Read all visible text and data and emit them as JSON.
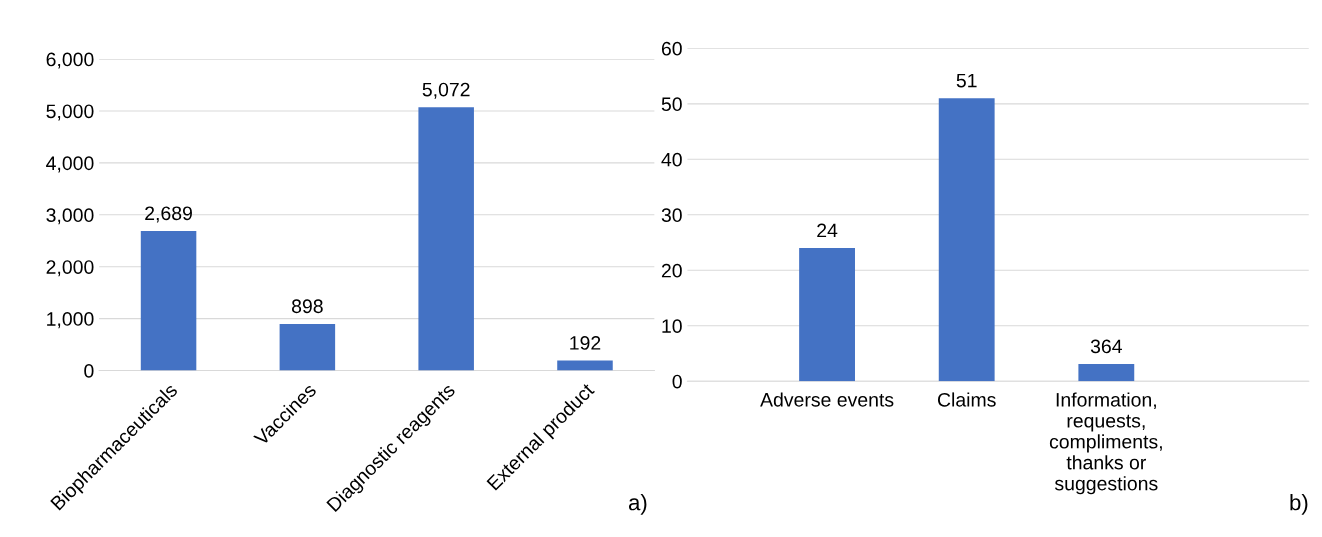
{
  "chart_data": [
    {
      "type": "bar",
      "categories": [
        "Biopharmaceuticals",
        "Vaccines",
        "Diagnostic reagents",
        "External product"
      ],
      "values": [
        2689,
        898,
        5072,
        192
      ],
      "color": "#4472c4",
      "ylim": [
        0,
        6000
      ],
      "yticks": [
        {
          "value": 0,
          "label": "0"
        },
        {
          "value": 1000,
          "label": "1,000"
        },
        {
          "value": 2000,
          "label": "2,000"
        },
        {
          "value": 3000,
          "label": "3,000"
        },
        {
          "value": 4000,
          "label": "4,000"
        },
        {
          "value": 5000,
          "label": "5,000"
        },
        {
          "value": 6000,
          "label": "6,000"
        }
      ],
      "grid": "y",
      "value_labels": [
        "2,689",
        "898",
        "5,072",
        "192"
      ],
      "annotations": [
        "a)"
      ]
    },
    {
      "type": "bar",
      "categories": [
        "Adverse events",
        "Claims",
        "Information,\nrequests,\ncompliments,\nthanks or\nsuggestions"
      ],
      "values": [
        24,
        51,
        3.1
      ],
      "color": "#4472c4",
      "ylim": [
        0,
        60
      ],
      "yticks": [
        0,
        10,
        20,
        30,
        40,
        50,
        60
      ],
      "grid": "y",
      "value_labels": [
        "24",
        "51",
        null
      ],
      "annotations": [
        "b)",
        {
          "text": "364",
          "x": "Information,\nrequests,\ncompliments,\nthanks or\nsuggestions",
          "y": 3.1
        }
      ]
    }
  ]
}
